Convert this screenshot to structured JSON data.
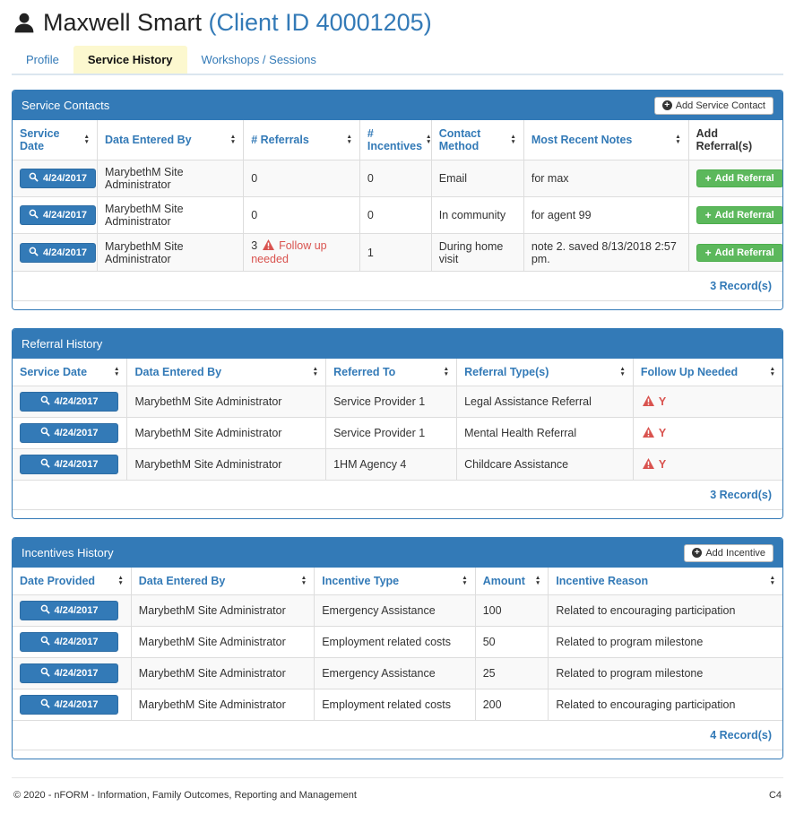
{
  "colors": {
    "accent": "#337ab7",
    "success_button": "#5cb85c",
    "danger_text": "#d9534f",
    "active_tab_background": "#fcf8cf",
    "row_stripe": "#f9f9f9"
  },
  "icons": {
    "header_user": "person-icon",
    "date_buttons": "search-icon",
    "panel_add_buttons": "plus-circle-icon",
    "row_add_buttons": "plus-icon",
    "warning": "warning-triangle-icon",
    "column_sort": "sort-arrows-icon"
  },
  "header": {
    "name": "Maxwell Smart",
    "client_id": "(Client ID 40001205)"
  },
  "tabs": [
    {
      "label": "Profile",
      "active": false
    },
    {
      "label": "Service History",
      "active": true
    },
    {
      "label": "Workshops / Sessions",
      "active": false
    }
  ],
  "service_contacts": {
    "title": "Service Contacts",
    "add_button_label": "Add Service Contact",
    "row_action_label": "Add Referral",
    "columns": [
      {
        "label": "Service Date",
        "sortable": true
      },
      {
        "label": "Data Entered By",
        "sortable": true
      },
      {
        "label": "# Referrals",
        "sortable": true
      },
      {
        "label": "# Incentives",
        "sortable": true
      },
      {
        "label": "Contact Method",
        "sortable": true
      },
      {
        "label": "Most Recent Notes",
        "sortable": true
      },
      {
        "label": "Add Referral(s)",
        "sortable": false
      }
    ],
    "rows": [
      {
        "date": "4/24/2017",
        "entered_by": "MarybethM Site Administrator",
        "referrals": "0",
        "referrals_warning": "",
        "incentives": "0",
        "contact_method": "Email",
        "notes": "for max"
      },
      {
        "date": "4/24/2017",
        "entered_by": "MarybethM Site Administrator",
        "referrals": "0",
        "referrals_warning": "",
        "incentives": "0",
        "contact_method": "In community",
        "notes": "for agent 99"
      },
      {
        "date": "4/24/2017",
        "entered_by": "MarybethM Site Administrator",
        "referrals": "3",
        "referrals_warning": "Follow up needed",
        "incentives": "1",
        "contact_method": "During home visit",
        "notes": "note 2. saved 8/13/2018 2:57 pm."
      }
    ],
    "record_count": "3 Record(s)"
  },
  "referral_history": {
    "title": "Referral History",
    "columns": [
      {
        "label": "Service Date",
        "sortable": true
      },
      {
        "label": "Data Entered By",
        "sortable": true
      },
      {
        "label": "Referred To",
        "sortable": true
      },
      {
        "label": "Referral Type(s)",
        "sortable": true
      },
      {
        "label": "Follow Up Needed",
        "sortable": true
      }
    ],
    "rows": [
      {
        "date": "4/24/2017",
        "entered_by": "MarybethM Site Administrator",
        "referred_to": "Service Provider 1",
        "referral_type": "Legal Assistance Referral",
        "follow_up": "Y"
      },
      {
        "date": "4/24/2017",
        "entered_by": "MarybethM Site Administrator",
        "referred_to": "Service Provider 1",
        "referral_type": "Mental Health Referral",
        "follow_up": "Y"
      },
      {
        "date": "4/24/2017",
        "entered_by": "MarybethM Site Administrator",
        "referred_to": "1HM Agency 4",
        "referral_type": "Childcare Assistance",
        "follow_up": "Y"
      }
    ],
    "record_count": "3 Record(s)"
  },
  "incentives_history": {
    "title": "Incentives History",
    "add_button_label": "Add Incentive",
    "columns": [
      {
        "label": "Date Provided",
        "sortable": true
      },
      {
        "label": "Data Entered By",
        "sortable": true
      },
      {
        "label": "Incentive Type",
        "sortable": true
      },
      {
        "label": "Amount",
        "sortable": true
      },
      {
        "label": "Incentive Reason",
        "sortable": true
      }
    ],
    "rows": [
      {
        "date": "4/24/2017",
        "entered_by": "MarybethM Site Administrator",
        "incentive_type": "Emergency Assistance",
        "amount": "100",
        "reason": "Related to encouraging participation"
      },
      {
        "date": "4/24/2017",
        "entered_by": "MarybethM Site Administrator",
        "incentive_type": "Employment related costs",
        "amount": "50",
        "reason": "Related to program milestone"
      },
      {
        "date": "4/24/2017",
        "entered_by": "MarybethM Site Administrator",
        "incentive_type": "Emergency Assistance",
        "amount": "25",
        "reason": "Related to program milestone"
      },
      {
        "date": "4/24/2017",
        "entered_by": "MarybethM Site Administrator",
        "incentive_type": "Employment related costs",
        "amount": "200",
        "reason": "Related to encouraging participation"
      }
    ],
    "record_count": "4 Record(s)"
  },
  "footer": {
    "copyright": "© 2020 - nFORM - Information, Family Outcomes, Reporting and Management",
    "page_code": "C4"
  }
}
